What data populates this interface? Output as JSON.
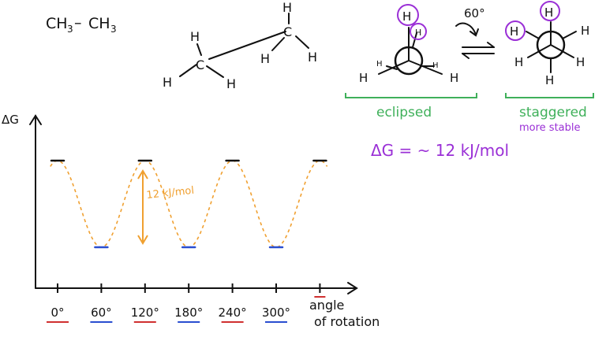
{
  "ethane": {
    "formula_left": "CH",
    "formula_sub1": "3",
    "formula_dash": "–",
    "formula_right": "CH",
    "formula_sub2": "3"
  },
  "structure": {
    "c1": "C",
    "c2": "C",
    "h": "H"
  },
  "newman": {
    "rotation_label": "60°",
    "eclipsed_label": "eclipsed",
    "staggered_label": "staggered",
    "staggered_note": "more stable",
    "h": "H",
    "h_small": "H"
  },
  "energy_eq": "ΔG = ~ 12 kJ/mol",
  "chart_data": {
    "type": "line",
    "ylabel": "ΔG",
    "xlabel_line1": "angle",
    "xlabel_line2": "of rotation",
    "x": [
      0,
      60,
      120,
      180,
      240,
      300,
      360
    ],
    "tick_labels": [
      "0°",
      "60°",
      "120°",
      "180°",
      "240°",
      "300°"
    ],
    "relative_energy_kJ_per_mol": [
      12,
      0,
      12,
      0,
      12,
      0,
      12
    ],
    "barrier_annotation": "12 kJ/mol",
    "colors": {
      "curve": "#f0a030",
      "eclipsed_marker": "#d03030",
      "staggered_marker": "#2a4ed0",
      "axis": "#111111",
      "peak_marker": "#111111"
    }
  },
  "colors": {
    "purple": "#9a2fd6",
    "green": "#3fb05a",
    "orange": "#f0a030",
    "black": "#111111"
  }
}
